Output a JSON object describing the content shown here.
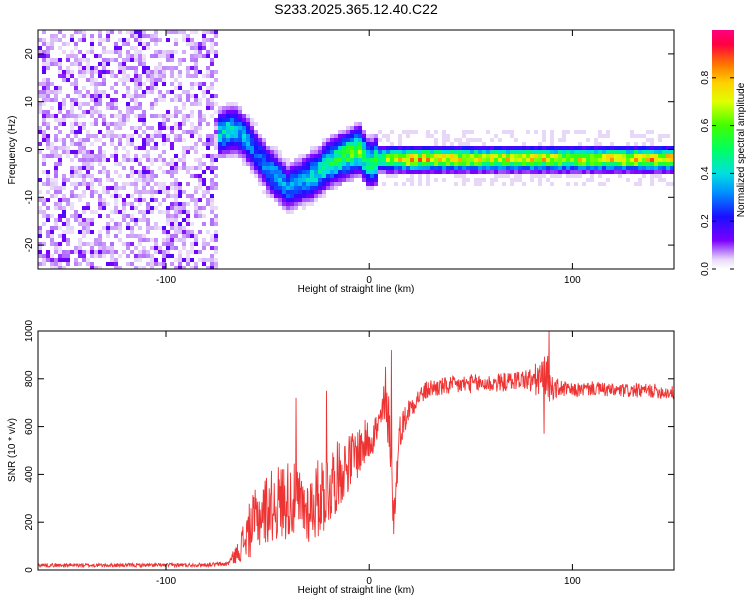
{
  "title": "S233.2025.365.12.40.C22",
  "chart_data": [
    {
      "type": "heatmap",
      "xlabel": "Height of straight line (km)",
      "ylabel": "Frequency (Hz)",
      "xlim": [
        -163,
        150
      ],
      "ylim": [
        -25,
        25
      ],
      "xticks": [
        -100,
        0,
        100
      ],
      "yticks": [
        -20,
        -10,
        0,
        10,
        20
      ],
      "colorbar": {
        "label": "Normalized spectral amplitude",
        "range": [
          0,
          1
        ],
        "ticks": [
          "0.0",
          "0.2",
          "0.4",
          "0.6",
          "0.8"
        ],
        "tick_values": [
          0.0,
          0.2,
          0.4,
          0.6,
          0.8
        ]
      },
      "ridge": {
        "x": [
          -85,
          -80,
          -75,
          -70,
          -65,
          -60,
          -55,
          -50,
          -45,
          -40,
          -35,
          -30,
          -25,
          -20,
          -15,
          -10,
          -5,
          0,
          5,
          10,
          20,
          40,
          60,
          80,
          100,
          120,
          150
        ],
        "freq": [
          -1,
          1,
          3,
          4,
          4,
          2,
          -1,
          -4,
          -6,
          -8,
          -7,
          -6,
          -5,
          -3,
          -2,
          -1,
          0,
          -3,
          -2,
          -2,
          -2,
          -2,
          -2,
          -2,
          -2,
          -2,
          -2
        ],
        "amplitude": [
          0.3,
          0.35,
          0.4,
          0.45,
          0.4,
          0.35,
          0.3,
          0.35,
          0.4,
          0.35,
          0.35,
          0.4,
          0.45,
          0.5,
          0.55,
          0.6,
          0.65,
          0.5,
          0.55,
          0.7,
          0.85,
          0.8,
          0.75,
          0.8,
          0.75,
          0.8,
          0.85
        ]
      },
      "noise_region_xmax": -75
    },
    {
      "type": "line",
      "xlabel": "Height of straight line (km)",
      "ylabel": "SNR (10 * v/v)",
      "xlim": [
        -163,
        150
      ],
      "ylim": [
        0,
        1000
      ],
      "xticks": [
        -100,
        0,
        100
      ],
      "yticks": [
        0,
        200,
        400,
        600,
        800,
        1000
      ],
      "series": [
        {
          "name": "SNR",
          "color": "#ee3333",
          "x": [
            -163,
            -140,
            -120,
            -100,
            -80,
            -70,
            -65,
            -60,
            -55,
            -50,
            -45,
            -40,
            -35,
            -30,
            -25,
            -20,
            -15,
            -10,
            -5,
            0,
            5,
            7,
            10,
            12,
            15,
            20,
            25,
            30,
            40,
            50,
            60,
            70,
            75,
            80,
            85,
            88,
            90,
            95,
            100,
            110,
            120,
            130,
            140,
            150
          ],
          "y": [
            20,
            20,
            20,
            20,
            22,
            25,
            70,
            150,
            220,
            260,
            280,
            300,
            280,
            250,
            300,
            350,
            400,
            450,
            500,
            550,
            600,
            680,
            620,
            200,
            580,
            680,
            730,
            760,
            770,
            780,
            780,
            790,
            800,
            790,
            800,
            800,
            760,
            760,
            750,
            760,
            750,
            750,
            750,
            740
          ],
          "noise_amplitude": [
            8,
            8,
            8,
            8,
            8,
            10,
            40,
            110,
            140,
            150,
            160,
            170,
            150,
            140,
            170,
            180,
            140,
            120,
            110,
            90,
            80,
            100,
            120,
            80,
            70,
            50,
            40,
            40,
            40,
            40,
            40,
            40,
            40,
            60,
            90,
            100,
            50,
            35,
            30,
            30,
            30,
            30,
            30,
            30
          ],
          "spikes": [
            {
              "x": 88.5,
              "y": 1000
            },
            {
              "x": 86,
              "y": 570
            },
            {
              "x": 11,
              "y": 920
            },
            {
              "x": 12,
              "y": 150
            },
            {
              "x": 8,
              "y": 850
            },
            {
              "x": -21,
              "y": 750
            },
            {
              "x": -36,
              "y": 720
            }
          ]
        }
      ]
    }
  ]
}
